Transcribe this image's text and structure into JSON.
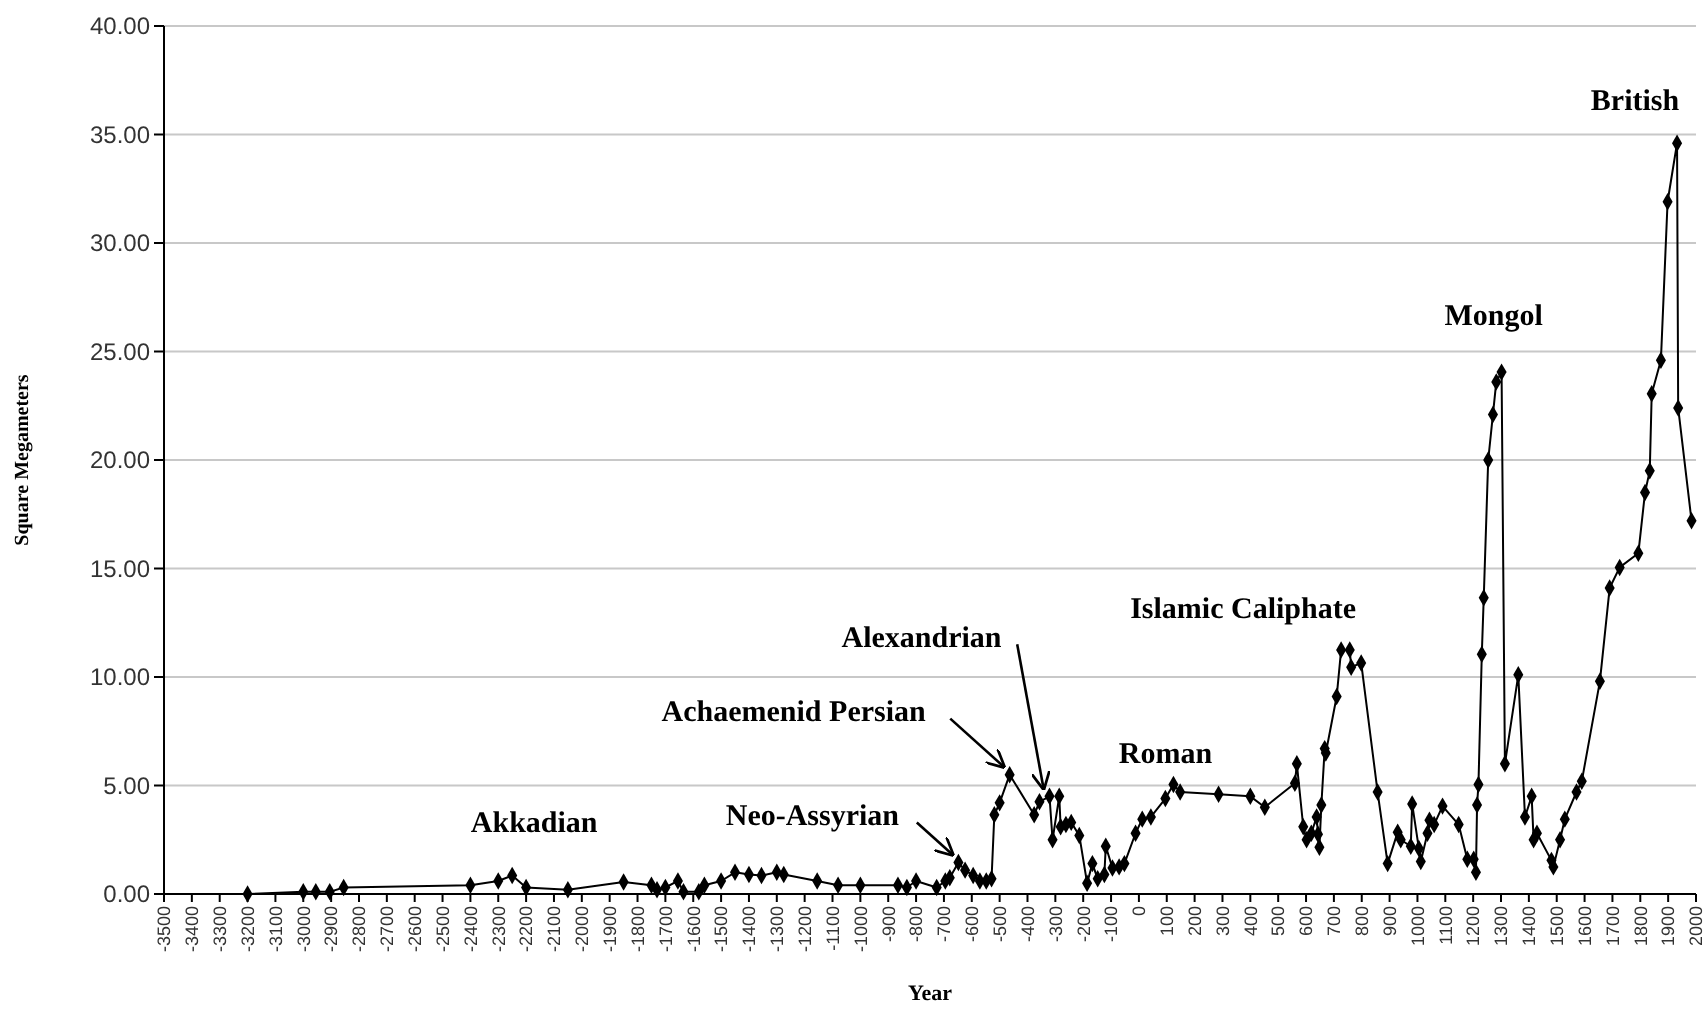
{
  "chart_data": {
    "type": "line",
    "xlabel": "Year",
    "ylabel": "Square Megameters",
    "marker": "diamond",
    "line_style": "solid",
    "grid": "y",
    "xlim": [
      -3500,
      2000
    ],
    "ylim": [
      0,
      40
    ],
    "xticks": [
      -3500,
      -3400,
      -3300,
      -3200,
      -3100,
      -3000,
      -2900,
      -2800,
      -2700,
      -2600,
      -2500,
      -2400,
      -2300,
      -2200,
      -2100,
      -2000,
      -1900,
      -1800,
      -1700,
      -1600,
      -1500,
      -1400,
      -1300,
      -1200,
      -1100,
      -1000,
      -900,
      -800,
      -700,
      -600,
      -500,
      -400,
      -300,
      -200,
      -100,
      0,
      100,
      200,
      300,
      400,
      500,
      600,
      700,
      800,
      900,
      1000,
      1100,
      1200,
      1300,
      1400,
      1500,
      1600,
      1700,
      1800,
      1900,
      2000
    ],
    "yticks": [
      {
        "value": 0,
        "label": "0.00"
      },
      {
        "value": 5,
        "label": "5.00"
      },
      {
        "value": 10,
        "label": "10.00"
      },
      {
        "value": 15,
        "label": "15.00"
      },
      {
        "value": 20,
        "label": "20.00"
      },
      {
        "value": 25,
        "label": "25.00"
      },
      {
        "value": 30,
        "label": "30.00"
      },
      {
        "value": 35,
        "label": "35.00"
      },
      {
        "value": 40,
        "label": "40.00"
      }
    ],
    "series": [
      {
        "color": "#000000",
        "x": [
          -3200,
          -3000,
          -2955,
          -2905,
          -2855,
          -2400,
          -2300,
          -2250,
          -2200,
          -2050,
          -1850,
          -1750,
          -1730,
          -1700,
          -1655,
          -1635,
          -1580,
          -1560,
          -1500,
          -1450,
          -1400,
          -1355,
          -1300,
          -1275,
          -1155,
          -1080,
          -1000,
          -865,
          -833,
          -800,
          -726,
          -695,
          -679,
          -648,
          -624,
          -595,
          -571,
          -548,
          -529,
          -519,
          -500,
          -464,
          -376,
          -357,
          -321,
          -310,
          -286,
          -281,
          -262,
          -243,
          -214,
          -186,
          -167,
          -148,
          -124,
          -119,
          -95,
          -71,
          -52,
          -12,
          12,
          43,
          95,
          124,
          148,
          286,
          400,
          452,
          560,
          567,
          590,
          602,
          619,
          638,
          643,
          648,
          655,
          667,
          671,
          710,
          726,
          757,
          762,
          798,
          857,
          893,
          929,
          940,
          976,
          981,
          1005,
          1012,
          1036,
          1043,
          1060,
          1090,
          1148,
          1179,
          1202,
          1210,
          1214,
          1219,
          1231,
          1238,
          1254,
          1271,
          1283,
          1302,
          1314,
          1362,
          1386,
          1410,
          1417,
          1429,
          1481,
          1488,
          1512,
          1529,
          1571,
          1590,
          1655,
          1690,
          1726,
          1793,
          1817,
          1834,
          1841,
          1874,
          1898,
          1932,
          1936,
          1984
        ],
        "values": [
          0,
          0.1,
          0.1,
          0.1,
          0.3,
          0.4,
          0.6,
          0.85,
          0.3,
          0.2,
          0.55,
          0.4,
          0.2,
          0.3,
          0.6,
          0.1,
          0.1,
          0.4,
          0.6,
          1.0,
          0.9,
          0.85,
          1.0,
          0.9,
          0.6,
          0.4,
          0.4,
          0.4,
          0.3,
          0.6,
          0.3,
          0.6,
          0.75,
          1.45,
          1.1,
          0.85,
          0.6,
          0.6,
          0.7,
          3.65,
          4.2,
          5.5,
          3.65,
          4.25,
          4.5,
          2.5,
          4.5,
          3.1,
          3.2,
          3.3,
          2.7,
          0.5,
          1.4,
          0.7,
          0.9,
          2.2,
          1.2,
          1.25,
          1.4,
          2.8,
          3.45,
          3.55,
          4.4,
          5.05,
          4.7,
          4.6,
          4.5,
          4.0,
          5.1,
          6.0,
          3.1,
          2.5,
          2.8,
          3.55,
          2.75,
          2.15,
          4.1,
          6.7,
          6.5,
          9.1,
          11.25,
          11.25,
          10.45,
          10.65,
          4.7,
          1.4,
          2.85,
          2.5,
          2.2,
          4.15,
          2.1,
          1.5,
          2.8,
          3.4,
          3.2,
          4.05,
          3.2,
          1.6,
          1.6,
          1.0,
          4.1,
          5.05,
          11.05,
          13.65,
          20.0,
          22.1,
          23.6,
          24.05,
          6.0,
          10.1,
          3.55,
          4.5,
          2.5,
          2.8,
          1.55,
          1.25,
          2.5,
          3.45,
          4.7,
          5.2,
          9.8,
          14.1,
          15.05,
          15.7,
          18.5,
          19.5,
          23.05,
          24.6,
          31.9,
          34.6,
          22.4,
          17.2
        ]
      }
    ],
    "annotations": [
      {
        "text": "Akkadian",
        "x": -2250,
        "y": 0.85
      },
      {
        "text": "Neo-Assyrian",
        "x": -648,
        "y": 1.45
      },
      {
        "text": "Achaemenid Persian",
        "x": -464,
        "y": 5.5
      },
      {
        "text": "Alexandrian",
        "x": -321,
        "y": 4.5
      },
      {
        "text": "Roman",
        "x": 124,
        "y": 5.05
      },
      {
        "text": "Islamic Caliphate",
        "x": 726,
        "y": 11.25
      },
      {
        "text": "Mongol",
        "x": 1302,
        "y": 24.05
      },
      {
        "text": "British",
        "x": 1932,
        "y": 34.6
      }
    ]
  }
}
